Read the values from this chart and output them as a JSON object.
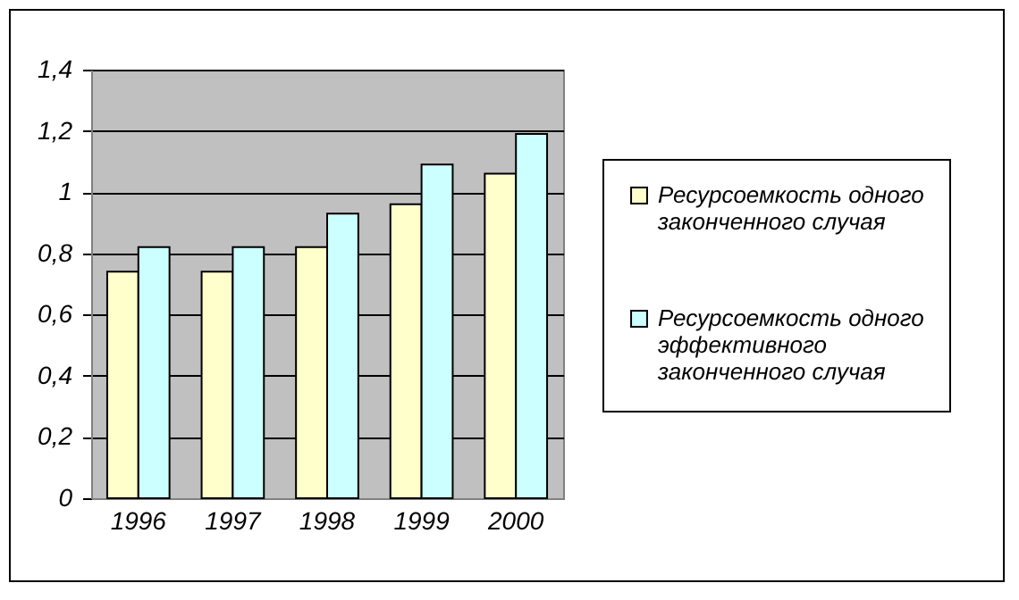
{
  "chart_data": {
    "type": "bar",
    "categories": [
      "1996",
      "1997",
      "1998",
      "1999",
      "2000"
    ],
    "series": [
      {
        "name": "Ресурсоемкость одного законченного случая",
        "color": "#ffffcc",
        "values": [
          0.74,
          0.74,
          0.82,
          0.96,
          1.06
        ]
      },
      {
        "name": "Ресурсоемкость одного эффективного законченного случая",
        "color": "#ccffff",
        "values": [
          0.82,
          0.82,
          0.93,
          1.09,
          1.19
        ]
      }
    ],
    "ylim": [
      0,
      1.4
    ],
    "yticks": [
      0,
      {
        "value": 0.2,
        "label": "0,2"
      },
      {
        "value": 0.4,
        "label": "0,4"
      },
      {
        "value": 0.6,
        "label": "0,6"
      },
      {
        "value": 0.8,
        "label": "0,8"
      },
      1,
      {
        "value": 1.2,
        "label": "1,2"
      },
      {
        "value": 1.4,
        "label": "1,4"
      }
    ],
    "grid": "y",
    "legend": "right"
  }
}
